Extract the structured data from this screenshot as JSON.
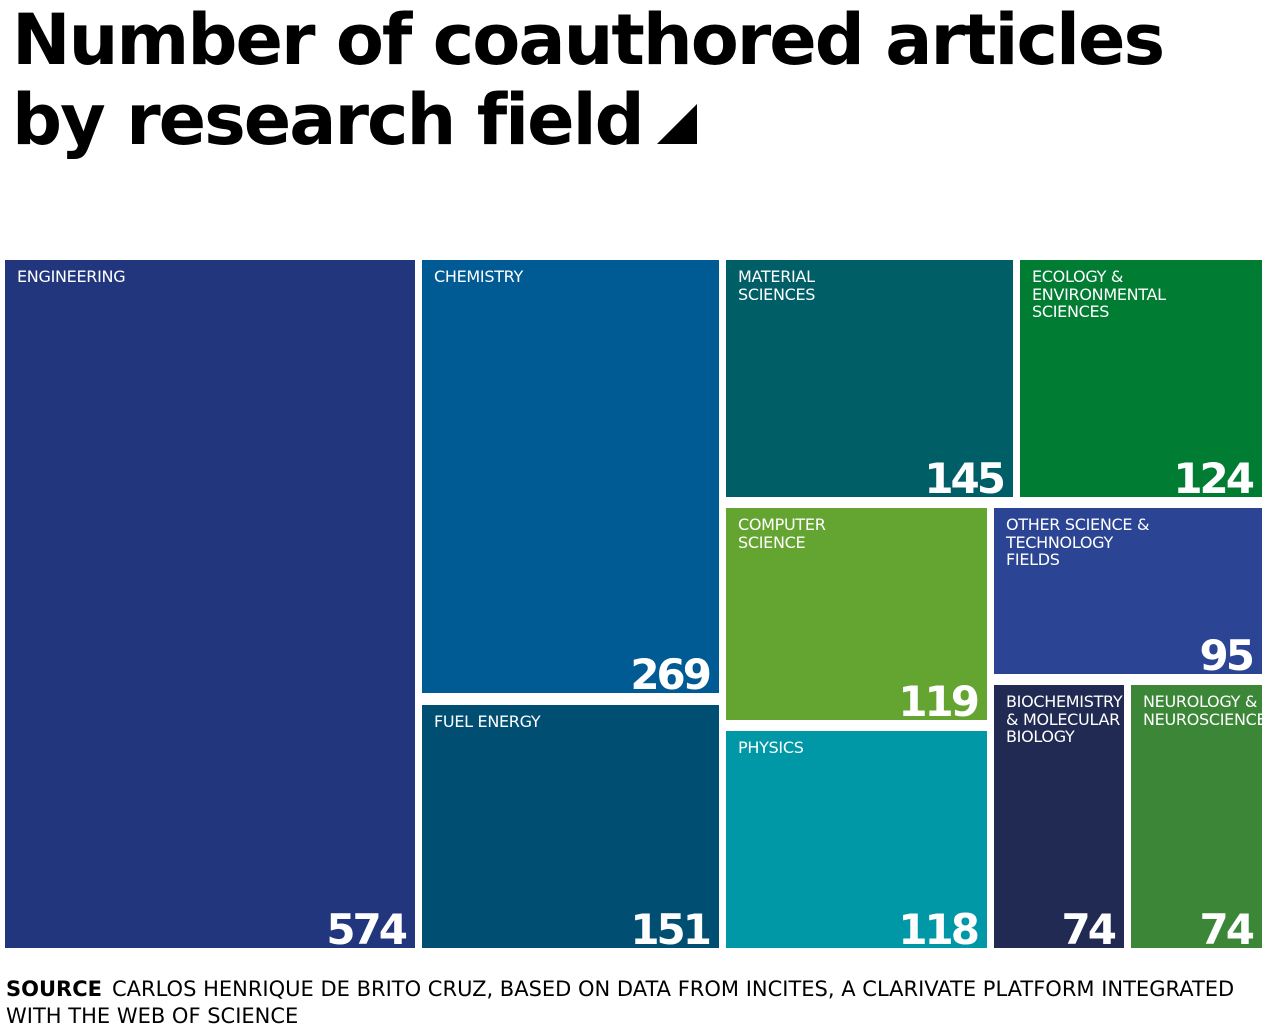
{
  "chart_data": {
    "type": "treemap",
    "title_lines": [
      "Number of coauthored articles",
      "by research field"
    ],
    "items": [
      {
        "label": "ENGINEERING",
        "value": 574,
        "color": "#22367E"
      },
      {
        "label": "CHEMISTRY",
        "value": 269,
        "color": "#005A94"
      },
      {
        "label": "FUEL ENERGY",
        "value": 151,
        "color": "#004F72"
      },
      {
        "label": "MATERIAL\nSCIENCES",
        "value": 145,
        "color": "#005E67"
      },
      {
        "label": "ECOLOGY &\nENVIRONMENTAL\nSCIENCES",
        "value": 124,
        "color": "#007C33"
      },
      {
        "label": "COMPUTER\nSCIENCE",
        "value": 119,
        "color": "#64A531"
      },
      {
        "label": "PHYSICS",
        "value": 118,
        "color": "#0098A7"
      },
      {
        "label": "OTHER SCIENCE &\nTECHNOLOGY\nFIELDS",
        "value": 95,
        "color": "#2B4494"
      },
      {
        "label": "BIOCHEMISTRY\n& MOLECULAR\nBIOLOGY",
        "value": 74,
        "color": "#202A52"
      },
      {
        "label": "NEUROLOGY &\nNEUROSCIENCES",
        "value": 74,
        "color": "#3C8637"
      }
    ]
  },
  "source": {
    "label": "SOURCE",
    "text": "CARLOS HENRIQUE DE BRITO CRUZ, BASED ON DATA FROM INCITES, A CLARIVATE PLATFORM INTEGRATED WITH THE WEB OF SCIENCE"
  }
}
